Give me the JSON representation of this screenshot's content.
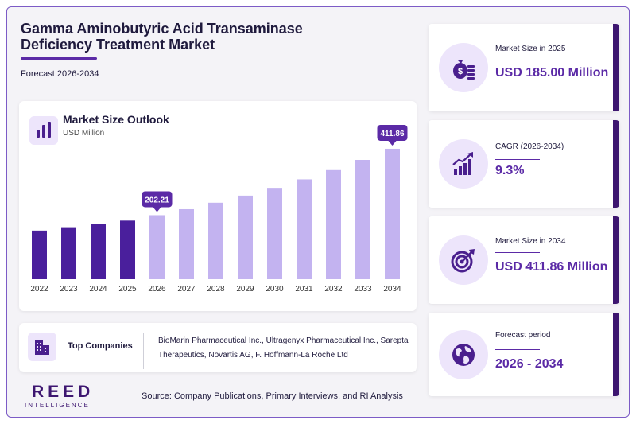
{
  "header": {
    "title": "Gamma Aminobutyric Acid Transaminase Deficiency Treatment Market",
    "subtitle": "Forecast 2026-2034"
  },
  "chart_card": {
    "title": "Market Size Outlook",
    "unit": "USD Million"
  },
  "chart_data": {
    "type": "bar",
    "title": "Market Size Outlook",
    "ylabel": "USD Million",
    "categories": [
      "2022",
      "2023",
      "2024",
      "2025",
      "2026",
      "2027",
      "2028",
      "2029",
      "2030",
      "2031",
      "2032",
      "2033",
      "2034"
    ],
    "values": [
      153.5,
      164.2,
      174.8,
      185.0,
      202.21,
      221.0,
      241.5,
      263.9,
      288.4,
      315.2,
      344.5,
      376.6,
      411.86
    ],
    "ylim": [
      0,
      420
    ],
    "annotations": [
      {
        "category": "2026",
        "label": "202.21"
      },
      {
        "category": "2034",
        "label": "411.86"
      }
    ],
    "colors": {
      "historical": "#4a1f9c",
      "forecast": "#c3b3f0",
      "callout": "#5b2aa6"
    },
    "grid": false
  },
  "stats": [
    {
      "label": "Market Size in 2025",
      "value": "USD 185.00 Million",
      "icon": "money-bag-icon"
    },
    {
      "label": "CAGR (2026-2034)",
      "value": "9.3%",
      "icon": "growth-chart-icon"
    },
    {
      "label": "Market Size in 2034",
      "value": "USD 411.86 Million",
      "icon": "target-icon"
    },
    {
      "label": "Forecast period",
      "value": "2026 - 2034",
      "icon": "globe-icon"
    }
  ],
  "companies": {
    "label": "Top Companies",
    "text": "BioMarin Pharmaceutical Inc., Ultragenyx Pharmaceutical Inc., Sarepta Therapeutics, Novartis AG, F. Hoffmann-La Roche Ltd"
  },
  "footer": {
    "brand": "REED",
    "brand_sub": "INTELLIGENCE",
    "source": "Source: Company Publications, Primary Interviews, and RI Analysis"
  }
}
